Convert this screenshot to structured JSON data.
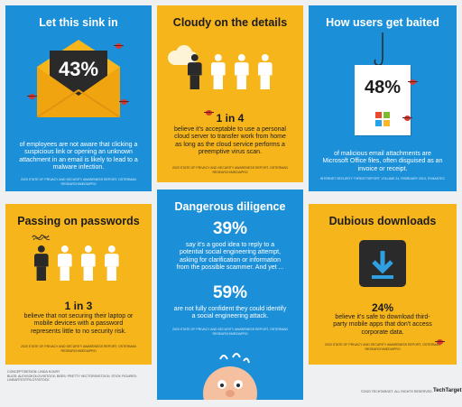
{
  "panels": {
    "sink": {
      "title": "Let this sink in",
      "stat": "43%",
      "text": "of employees are not aware that clicking a suspicious link or opening an unknown attachment in an email is likely to lead to a malware infection.",
      "source": "2020 State of Privacy and Security Awareness Report, Osterman Research/MediaPRO"
    },
    "cloudy": {
      "title": "Cloudy on the details",
      "stat": "1 in 4",
      "text": "believe it's acceptable to use a personal cloud server to transfer work from home as long as the cloud service performs a preemptive virus scan.",
      "source": "2020 State of Privacy and Security Awareness Report, Osterman Research/MediaPRO"
    },
    "baited": {
      "title": "How users get baited",
      "stat": "48%",
      "text": "of malicious email attachments are Microsoft Office files, often disguised as an invoice or receipt.",
      "source": "Internet Security Threat Report, Volume 24, February 2019, Symantec"
    },
    "passwords": {
      "title": "Passing on passwords",
      "stat": "1 in 3",
      "text": "believe that not securing their laptop or mobile devices with a password represents little to no security risk.",
      "source": "2020 State of Privacy and Security Awareness Report, Osterman Research/MediaPRO"
    },
    "diligence": {
      "title": "Dangerous diligence",
      "stat1": "39%",
      "text1": "say it's a good idea to reply to a potential social engineering attempt, asking for clarification or information from the possible scammer. And yet ...",
      "stat2": "59%",
      "text2": "are not fully confident they could identify a social engineering attack.",
      "source": "2020 State of Privacy and Security Awareness Report, Osterman Research/MediaPRO"
    },
    "downloads": {
      "title": "Dubious downloads",
      "stat": "24%",
      "text": "believe it's safe to download third-party mobile apps that don't access corporate data.",
      "source": "2020 State of Privacy and Security Awareness Report, Osterman Research/MediaPRO"
    }
  },
  "footer": {
    "credits": "Concept/Design: Linda Koury\nBugs: Alexsokolov/iStock; Bees: Pretty Vectors/iStock; Stick figures: Lineartestpilot/iStock",
    "copyright": "©2020 TechTarget. All rights reserved.",
    "brand": "TechTarget"
  },
  "colors": {
    "blue": "#1b8fd8",
    "yellow": "#f7b51c",
    "dark": "#2a2a2a",
    "red": "#d63a2f"
  }
}
